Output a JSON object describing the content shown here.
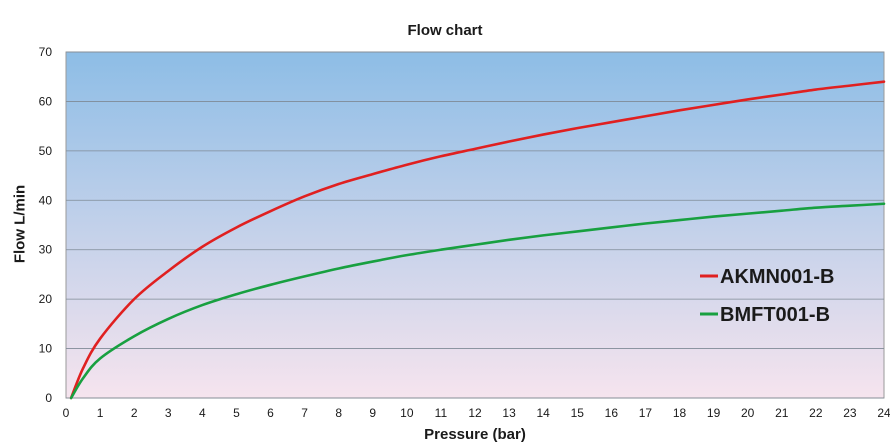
{
  "chart_data": {
    "type": "line",
    "title": "Flow chart",
    "xlabel": "Pressure (bar)",
    "ylabel": "Flow L/min",
    "xlim": [
      0,
      24
    ],
    "ylim": [
      0,
      70
    ],
    "x_ticks": [
      0,
      1,
      2,
      3,
      4,
      5,
      6,
      7,
      8,
      9,
      10,
      11,
      12,
      13,
      14,
      15,
      16,
      17,
      18,
      19,
      20,
      21,
      22,
      23,
      24
    ],
    "y_ticks": [
      0,
      10,
      20,
      30,
      40,
      50,
      60,
      70
    ],
    "grid": "horizontal",
    "background_gradient": [
      "#8dbde6",
      "#f6e4ee"
    ],
    "legend_position": "right",
    "x": [
      0.15,
      0.5,
      1,
      2,
      3,
      4,
      5,
      6,
      7,
      8,
      9,
      10,
      11,
      12,
      13,
      14,
      15,
      16,
      17,
      18,
      19,
      20,
      21,
      22,
      23,
      24
    ],
    "series": [
      {
        "name": "AKMN001-B",
        "color": "#e02020",
        "values": [
          0,
          6,
          12,
          20,
          25.7,
          30.6,
          34.5,
          37.8,
          40.8,
          43.3,
          45.3,
          47.2,
          48.9,
          50.4,
          51.9,
          53.3,
          54.6,
          55.8,
          57.0,
          58.2,
          59.3,
          60.4,
          61.4,
          62.4,
          63.2,
          64.0
        ]
      },
      {
        "name": "BMFT001-B",
        "color": "#18a040",
        "values": [
          0,
          4,
          8,
          12.5,
          16,
          18.8,
          21,
          22.9,
          24.6,
          26.2,
          27.6,
          28.9,
          30.0,
          31.0,
          32.0,
          32.9,
          33.7,
          34.5,
          35.3,
          36.0,
          36.7,
          37.3,
          37.9,
          38.5,
          38.9,
          39.3
        ]
      }
    ]
  }
}
